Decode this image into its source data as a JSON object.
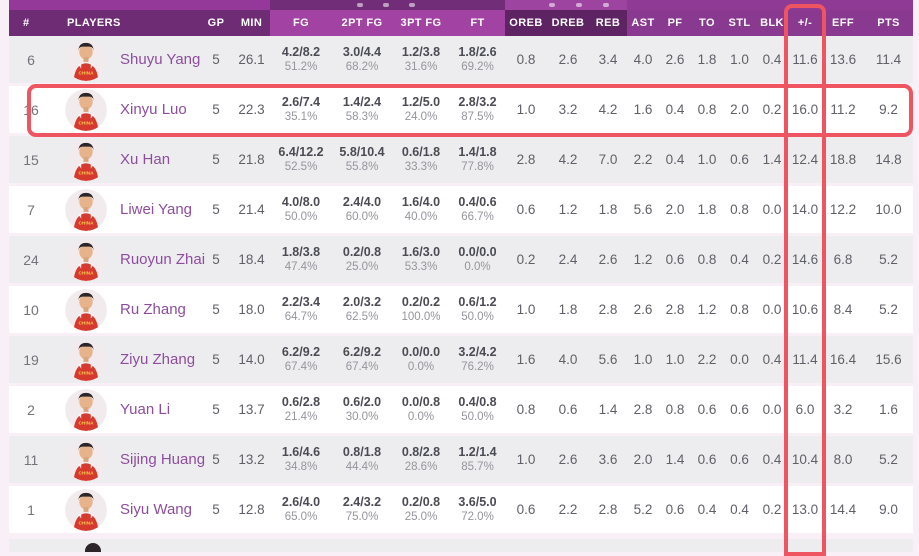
{
  "table": {
    "columns": [
      {
        "key": "num",
        "label": "#"
      },
      {
        "key": "player",
        "label": "PLAYERS"
      },
      {
        "key": "gp",
        "label": "GP"
      },
      {
        "key": "min",
        "label": "MIN"
      },
      {
        "key": "fg",
        "label": "FG"
      },
      {
        "key": "fg2",
        "label": "2PT FG"
      },
      {
        "key": "fg3",
        "label": "3PT FG"
      },
      {
        "key": "ft",
        "label": "FT"
      },
      {
        "key": "oreb",
        "label": "OREB"
      },
      {
        "key": "dreb",
        "label": "DREB"
      },
      {
        "key": "reb",
        "label": "REB"
      },
      {
        "key": "ast",
        "label": "AST"
      },
      {
        "key": "pf",
        "label": "PF"
      },
      {
        "key": "to",
        "label": "TO"
      },
      {
        "key": "stl",
        "label": "STL"
      },
      {
        "key": "blk",
        "label": "BLK"
      },
      {
        "key": "pm",
        "label": "+/-"
      },
      {
        "key": "eff",
        "label": "EFF"
      },
      {
        "key": "pts",
        "label": "PTS"
      }
    ],
    "avatar_jersey_text": "CHINA",
    "players": [
      {
        "num": "6",
        "name": "Shuyu Yang",
        "gp": "5",
        "min": "26.1",
        "fg": "4.2/8.2",
        "fg_pct": "51.2%",
        "fg2": "3.0/4.4",
        "fg2_pct": "68.2%",
        "fg3": "1.2/3.8",
        "fg3_pct": "31.6%",
        "ft": "1.8/2.6",
        "ft_pct": "69.2%",
        "oreb": "0.8",
        "dreb": "2.6",
        "reb": "3.4",
        "ast": "4.0",
        "pf": "2.6",
        "to": "1.8",
        "stl": "1.0",
        "blk": "0.4",
        "pm": "11.6",
        "eff": "13.6",
        "pts": "11.4",
        "highlighted": false
      },
      {
        "num": "16",
        "name": "Xinyu Luo",
        "gp": "5",
        "min": "22.3",
        "fg": "2.6/7.4",
        "fg_pct": "35.1%",
        "fg2": "1.4/2.4",
        "fg2_pct": "58.3%",
        "fg3": "1.2/5.0",
        "fg3_pct": "24.0%",
        "ft": "2.8/3.2",
        "ft_pct": "87.5%",
        "oreb": "1.0",
        "dreb": "3.2",
        "reb": "4.2",
        "ast": "1.6",
        "pf": "0.4",
        "to": "0.8",
        "stl": "2.0",
        "blk": "0.2",
        "pm": "16.0",
        "eff": "11.2",
        "pts": "9.2",
        "highlighted": true
      },
      {
        "num": "15",
        "name": "Xu Han",
        "gp": "5",
        "min": "21.8",
        "fg": "6.4/12.2",
        "fg_pct": "52.5%",
        "fg2": "5.8/10.4",
        "fg2_pct": "55.8%",
        "fg3": "0.6/1.8",
        "fg3_pct": "33.3%",
        "ft": "1.4/1.8",
        "ft_pct": "77.8%",
        "oreb": "2.8",
        "dreb": "4.2",
        "reb": "7.0",
        "ast": "2.2",
        "pf": "0.4",
        "to": "1.0",
        "stl": "0.6",
        "blk": "1.4",
        "pm": "12.4",
        "eff": "18.8",
        "pts": "14.8",
        "highlighted": false
      },
      {
        "num": "7",
        "name": "Liwei Yang",
        "gp": "5",
        "min": "21.4",
        "fg": "4.0/8.0",
        "fg_pct": "50.0%",
        "fg2": "2.4/4.0",
        "fg2_pct": "60.0%",
        "fg3": "1.6/4.0",
        "fg3_pct": "40.0%",
        "ft": "0.4/0.6",
        "ft_pct": "66.7%",
        "oreb": "0.6",
        "dreb": "1.2",
        "reb": "1.8",
        "ast": "5.6",
        "pf": "2.0",
        "to": "1.8",
        "stl": "0.8",
        "blk": "0.0",
        "pm": "14.0",
        "eff": "12.2",
        "pts": "10.0",
        "highlighted": false
      },
      {
        "num": "24",
        "name": "Ruoyun Zhai",
        "gp": "5",
        "min": "18.4",
        "fg": "1.8/3.8",
        "fg_pct": "47.4%",
        "fg2": "0.2/0.8",
        "fg2_pct": "25.0%",
        "fg3": "1.6/3.0",
        "fg3_pct": "53.3%",
        "ft": "0.0/0.0",
        "ft_pct": "0.0%",
        "oreb": "0.2",
        "dreb": "2.4",
        "reb": "2.6",
        "ast": "1.2",
        "pf": "0.6",
        "to": "0.8",
        "stl": "0.4",
        "blk": "0.2",
        "pm": "14.6",
        "eff": "6.8",
        "pts": "5.2",
        "highlighted": false
      },
      {
        "num": "10",
        "name": "Ru Zhang",
        "gp": "5",
        "min": "18.0",
        "fg": "2.2/3.4",
        "fg_pct": "64.7%",
        "fg2": "2.0/3.2",
        "fg2_pct": "62.5%",
        "fg3": "0.2/0.2",
        "fg3_pct": "100.0%",
        "ft": "0.6/1.2",
        "ft_pct": "50.0%",
        "oreb": "1.0",
        "dreb": "1.8",
        "reb": "2.8",
        "ast": "2.6",
        "pf": "2.8",
        "to": "1.2",
        "stl": "0.8",
        "blk": "0.0",
        "pm": "10.6",
        "eff": "8.4",
        "pts": "5.2",
        "highlighted": false
      },
      {
        "num": "19",
        "name": "Ziyu Zhang",
        "gp": "5",
        "min": "14.0",
        "fg": "6.2/9.2",
        "fg_pct": "67.4%",
        "fg2": "6.2/9.2",
        "fg2_pct": "67.4%",
        "fg3": "0.0/0.0",
        "fg3_pct": "0.0%",
        "ft": "3.2/4.2",
        "ft_pct": "76.2%",
        "oreb": "1.6",
        "dreb": "4.0",
        "reb": "5.6",
        "ast": "1.0",
        "pf": "1.0",
        "to": "2.2",
        "stl": "0.0",
        "blk": "0.4",
        "pm": "11.4",
        "eff": "16.4",
        "pts": "15.6",
        "highlighted": false
      },
      {
        "num": "2",
        "name": "Yuan Li",
        "gp": "5",
        "min": "13.7",
        "fg": "0.6/2.8",
        "fg_pct": "21.4%",
        "fg2": "0.6/2.0",
        "fg2_pct": "30.0%",
        "fg3": "0.0/0.8",
        "fg3_pct": "0.0%",
        "ft": "0.4/0.8",
        "ft_pct": "50.0%",
        "oreb": "0.8",
        "dreb": "0.6",
        "reb": "1.4",
        "ast": "2.8",
        "pf": "0.8",
        "to": "0.6",
        "stl": "0.6",
        "blk": "0.0",
        "pm": "6.0",
        "eff": "3.2",
        "pts": "1.6",
        "highlighted": false
      },
      {
        "num": "11",
        "name": "Sijing Huang",
        "gp": "5",
        "min": "13.2",
        "fg": "1.6/4.6",
        "fg_pct": "34.8%",
        "fg2": "0.8/1.8",
        "fg2_pct": "44.4%",
        "fg3": "0.8/2.8",
        "fg3_pct": "28.6%",
        "ft": "1.2/1.4",
        "ft_pct": "85.7%",
        "oreb": "1.0",
        "dreb": "2.6",
        "reb": "3.6",
        "ast": "2.0",
        "pf": "1.4",
        "to": "0.6",
        "stl": "0.6",
        "blk": "0.4",
        "pm": "10.4",
        "eff": "8.0",
        "pts": "5.2",
        "highlighted": false
      },
      {
        "num": "1",
        "name": "Siyu Wang",
        "gp": "5",
        "min": "12.8",
        "fg": "2.6/4.0",
        "fg_pct": "65.0%",
        "fg2": "2.4/3.2",
        "fg2_pct": "75.0%",
        "fg3": "0.2/0.8",
        "fg3_pct": "25.0%",
        "ft": "3.6/5.0",
        "ft_pct": "72.0%",
        "oreb": "0.6",
        "dreb": "2.2",
        "reb": "2.8",
        "ast": "5.2",
        "pf": "0.6",
        "to": "0.4",
        "stl": "0.4",
        "blk": "0.2",
        "pm": "13.0",
        "eff": "14.4",
        "pts": "9.0",
        "highlighted": false
      }
    ]
  },
  "highlights": {
    "color": "#ee5560",
    "highlighted_column_label": "+/-",
    "highlighted_row_player": "Xinyu Luo"
  },
  "colors": {
    "header_left": "#6e2c74",
    "header_shooting": "#a243a3",
    "header_rebounds": "#5d2363",
    "header_rest": "#8a3990",
    "row_gray": "#ededf0",
    "row_white": "#ffffff",
    "player_name": "#8d4d9c",
    "page_background": "#f8f0f6"
  }
}
